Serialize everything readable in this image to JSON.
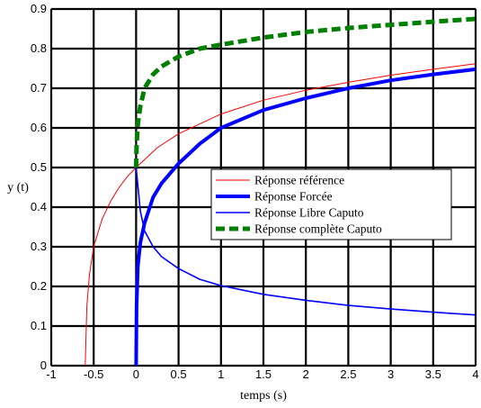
{
  "chart_data": {
    "type": "line",
    "title": "",
    "xlabel": "temps (s)",
    "ylabel": "y (t)",
    "xlim": [
      -1,
      4
    ],
    "ylim": [
      0,
      0.9
    ],
    "xticks": [
      "-1",
      "-0.5",
      "0",
      "0.5",
      "1",
      "1.5",
      "2",
      "2.5",
      "3",
      "3.5",
      "4"
    ],
    "yticks": [
      "0",
      "0.1",
      "0.2",
      "0.3",
      "0.4",
      "0.5",
      "0.6",
      "0.7",
      "0.8",
      "0.9"
    ],
    "grid": true,
    "legend_position": "center-right",
    "series": [
      {
        "name": "Réponse référence",
        "color": "#ff0000",
        "style": "solid-thin",
        "x": [
          -0.6,
          -0.58,
          -0.55,
          -0.5,
          -0.4,
          -0.3,
          -0.2,
          -0.1,
          0,
          0.25,
          0.5,
          1,
          1.5,
          2,
          2.5,
          3,
          3.5,
          4
        ],
        "y": [
          0.0,
          0.15,
          0.23,
          0.3,
          0.37,
          0.415,
          0.45,
          0.478,
          0.5,
          0.55,
          0.585,
          0.635,
          0.67,
          0.695,
          0.715,
          0.733,
          0.748,
          0.762
        ]
      },
      {
        "name": "Réponse Forcée",
        "color": "#0000ff",
        "style": "solid-thick",
        "x": [
          0,
          0.005,
          0.02,
          0.05,
          0.1,
          0.2,
          0.3,
          0.5,
          0.75,
          1,
          1.5,
          2,
          2.5,
          3,
          3.5,
          4
        ],
        "y": [
          0.0,
          0.15,
          0.25,
          0.31,
          0.36,
          0.425,
          0.46,
          0.51,
          0.56,
          0.6,
          0.645,
          0.675,
          0.7,
          0.72,
          0.735,
          0.748
        ]
      },
      {
        "name": "Réponse Libre Caputo",
        "color": "#0000ff",
        "style": "solid-medium",
        "x": [
          0,
          0.05,
          0.1,
          0.2,
          0.3,
          0.5,
          0.75,
          1,
          1.5,
          2,
          2.5,
          3,
          3.5,
          4
        ],
        "y": [
          0.5,
          0.39,
          0.34,
          0.3,
          0.275,
          0.245,
          0.218,
          0.202,
          0.18,
          0.165,
          0.152,
          0.143,
          0.135,
          0.128
        ]
      },
      {
        "name": "Réponse complète Caputo",
        "color": "#008000",
        "style": "dashed-thick",
        "x": [
          0,
          0.005,
          0.02,
          0.05,
          0.1,
          0.2,
          0.3,
          0.5,
          0.75,
          1,
          1.5,
          2,
          2.5,
          3,
          3.5,
          4
        ],
        "y": [
          0.5,
          0.555,
          0.61,
          0.655,
          0.7,
          0.735,
          0.755,
          0.78,
          0.8,
          0.81,
          0.828,
          0.842,
          0.852,
          0.86,
          0.868,
          0.875
        ]
      }
    ]
  }
}
